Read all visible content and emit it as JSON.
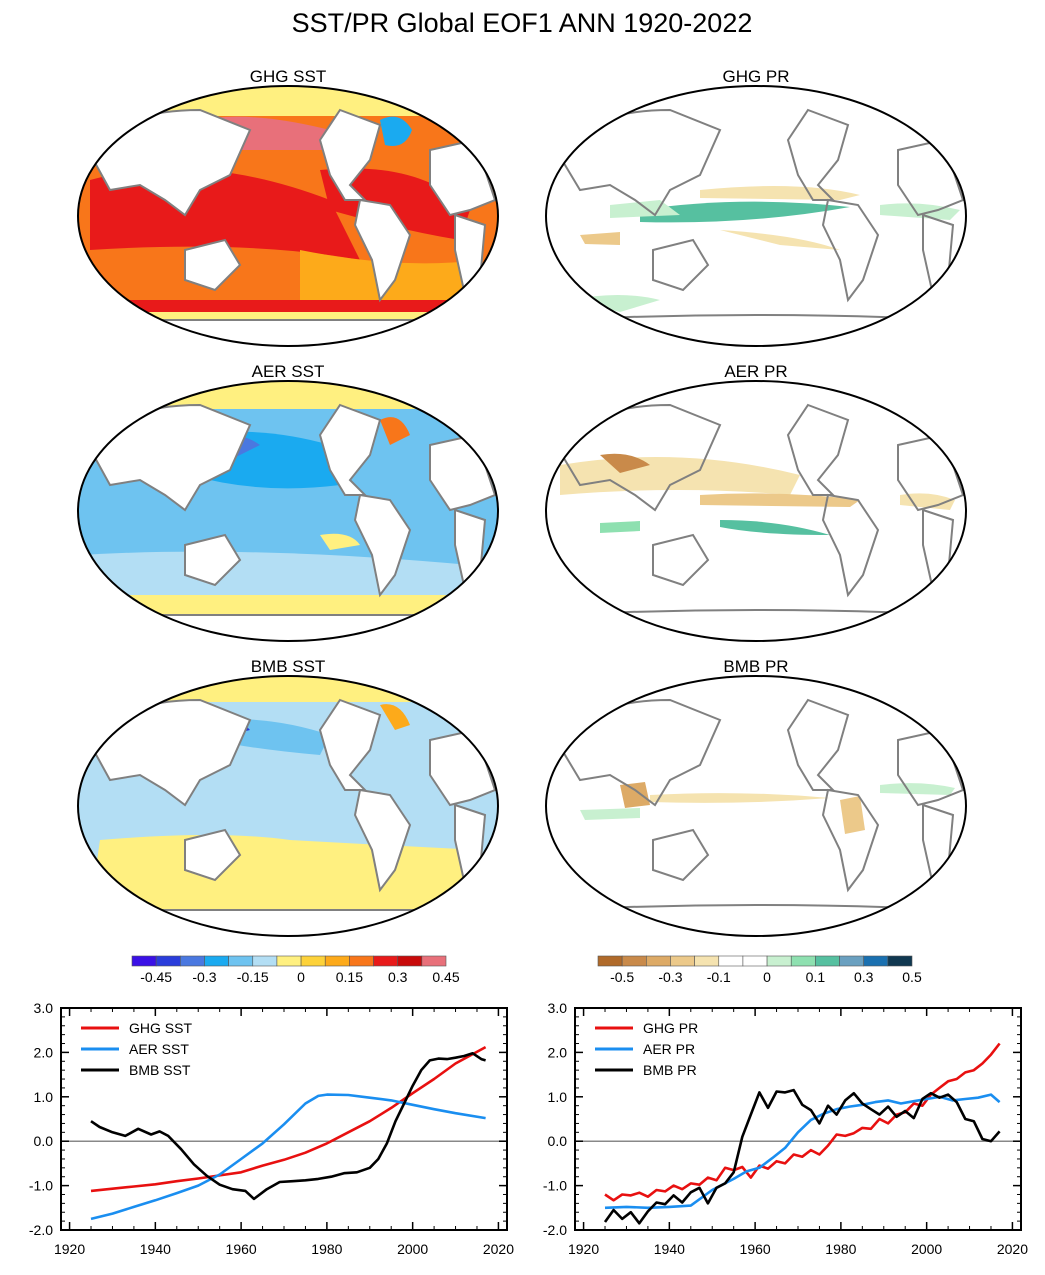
{
  "figure": {
    "title": "SST/PR Global EOF1 ANN 1920-2022"
  },
  "maps": [
    {
      "title": "GHG SST",
      "variable": "SST",
      "forcing": "GHG"
    },
    {
      "title": "GHG PR",
      "variable": "PR",
      "forcing": "GHG"
    },
    {
      "title": "AER SST",
      "variable": "SST",
      "forcing": "AER"
    },
    {
      "title": "AER PR",
      "variable": "PR",
      "forcing": "AER"
    },
    {
      "title": "BMB SST",
      "variable": "SST",
      "forcing": "BMB"
    },
    {
      "title": "BMB PR",
      "variable": "PR",
      "forcing": "BMB"
    }
  ],
  "colorbars": {
    "sst": {
      "colors": [
        "#3a10e6",
        "#2a3ddb",
        "#4a78e0",
        "#1aaaf0",
        "#6ec3f0",
        "#b3def4",
        "#fff080",
        "#fdd23a",
        "#fdaa1a",
        "#f8761a",
        "#e81a1a",
        "#c80a0a",
        "#e8707a"
      ],
      "labels": [
        "-0.45",
        "-0.3",
        "-0.15",
        "0",
        "0.15",
        "0.3",
        "0.45"
      ]
    },
    "pr": {
      "colors": [
        "#b06a2a",
        "#c98a4a",
        "#ddaa66",
        "#ecc98a",
        "#f5e3b0",
        "#ffffff",
        "#ffffff",
        "#c8f0d0",
        "#8ee0b0",
        "#56c0a0",
        "#6aa0c0",
        "#1a70b0",
        "#103850"
      ],
      "labels": [
        "-0.5",
        "-0.3",
        "-0.1",
        "0",
        "0.1",
        "0.3",
        "0.5"
      ]
    }
  },
  "chart_data": [
    {
      "type": "line",
      "xlim": [
        1918,
        2022
      ],
      "ylim": [
        -2.0,
        3.0
      ],
      "xticks": [
        "1920",
        "1940",
        "1960",
        "1980",
        "2000",
        "2020"
      ],
      "yticks": [
        "-2.0",
        "-1.0",
        "0.0",
        "1.0",
        "2.0",
        "3.0"
      ],
      "legend_position": "top-left",
      "series": [
        {
          "name": "GHG SST",
          "color": "#e81010",
          "x": [
            1925,
            1930,
            1935,
            1940,
            1945,
            1950,
            1955,
            1960,
            1965,
            1970,
            1975,
            1980,
            1985,
            1990,
            1995,
            2000,
            2005,
            2010,
            2017
          ],
          "y": [
            -1.12,
            -1.07,
            -1.02,
            -0.97,
            -0.9,
            -0.84,
            -0.77,
            -0.7,
            -0.55,
            -0.42,
            -0.26,
            -0.05,
            0.2,
            0.45,
            0.75,
            1.08,
            1.4,
            1.75,
            2.12
          ]
        },
        {
          "name": "AER SST",
          "color": "#1a8ef0",
          "x": [
            1925,
            1930,
            1935,
            1940,
            1945,
            1950,
            1955,
            1960,
            1965,
            1970,
            1975,
            1978,
            1980,
            1985,
            1990,
            1995,
            2000,
            2005,
            2010,
            2017
          ],
          "y": [
            -1.75,
            -1.63,
            -1.48,
            -1.33,
            -1.17,
            -1.0,
            -0.75,
            -0.4,
            -0.05,
            0.38,
            0.85,
            1.02,
            1.05,
            1.04,
            0.98,
            0.92,
            0.82,
            0.72,
            0.63,
            0.52
          ]
        },
        {
          "name": "BMB SST",
          "color": "#000000",
          "x": [
            1925,
            1927,
            1930,
            1933,
            1936,
            1939,
            1941,
            1943,
            1946,
            1949,
            1952,
            1955,
            1958,
            1961,
            1963,
            1966,
            1969,
            1972,
            1975,
            1978,
            1981,
            1984,
            1987,
            1990,
            1992,
            1994,
            1996,
            1998,
            2000,
            2002,
            2004,
            2006,
            2008,
            2010,
            2012,
            2014,
            2016,
            2017
          ],
          "y": [
            0.45,
            0.32,
            0.2,
            0.12,
            0.28,
            0.15,
            0.22,
            0.12,
            -0.18,
            -0.52,
            -0.78,
            -0.98,
            -1.08,
            -1.12,
            -1.3,
            -1.08,
            -0.92,
            -0.9,
            -0.88,
            -0.85,
            -0.8,
            -0.72,
            -0.7,
            -0.6,
            -0.4,
            -0.05,
            0.45,
            0.85,
            1.25,
            1.6,
            1.82,
            1.86,
            1.85,
            1.88,
            1.92,
            1.98,
            1.85,
            1.82
          ]
        }
      ]
    },
    {
      "type": "line",
      "xlim": [
        1918,
        2022
      ],
      "ylim": [
        -2.0,
        3.0
      ],
      "xticks": [
        "1920",
        "1940",
        "1960",
        "1980",
        "2000",
        "2020"
      ],
      "yticks": [
        "-2.0",
        "-1.0",
        "0.0",
        "1.0",
        "2.0",
        "3.0"
      ],
      "legend_position": "top-left",
      "series": [
        {
          "name": "GHG PR",
          "color": "#e81010",
          "x": [
            1925,
            1927,
            1929,
            1931,
            1933,
            1935,
            1937,
            1939,
            1941,
            1943,
            1945,
            1947,
            1949,
            1951,
            1953,
            1955,
            1957,
            1959,
            1961,
            1963,
            1965,
            1967,
            1969,
            1971,
            1973,
            1975,
            1977,
            1979,
            1981,
            1983,
            1985,
            1987,
            1989,
            1991,
            1993,
            1995,
            1997,
            1999,
            2001,
            2003,
            2005,
            2007,
            2009,
            2011,
            2013,
            2015,
            2017
          ],
          "y": [
            -1.2,
            -1.33,
            -1.2,
            -1.22,
            -1.16,
            -1.25,
            -1.1,
            -1.13,
            -1.0,
            -1.08,
            -0.95,
            -0.98,
            -0.82,
            -0.88,
            -0.6,
            -0.65,
            -0.58,
            -0.82,
            -0.55,
            -0.62,
            -0.45,
            -0.5,
            -0.3,
            -0.35,
            -0.2,
            -0.3,
            -0.1,
            0.15,
            0.12,
            0.18,
            0.3,
            0.28,
            0.5,
            0.4,
            0.6,
            0.65,
            0.85,
            0.8,
            1.05,
            1.2,
            1.35,
            1.4,
            1.55,
            1.6,
            1.75,
            1.95,
            2.2
          ]
        },
        {
          "name": "AER PR",
          "color": "#1a8ef0",
          "x": [
            1925,
            1930,
            1935,
            1940,
            1945,
            1950,
            1955,
            1958,
            1961,
            1964,
            1967,
            1970,
            1973,
            1976,
            1979,
            1982,
            1985,
            1988,
            1991,
            1994,
            1997,
            2000,
            2003,
            2006,
            2009,
            2012,
            2015,
            2017
          ],
          "y": [
            -1.5,
            -1.48,
            -1.5,
            -1.48,
            -1.45,
            -1.1,
            -0.85,
            -0.68,
            -0.6,
            -0.38,
            -0.15,
            0.2,
            0.48,
            0.62,
            0.72,
            0.78,
            0.82,
            0.88,
            0.92,
            0.85,
            0.9,
            0.95,
            1.0,
            0.92,
            0.95,
            0.98,
            1.05,
            0.88
          ]
        },
        {
          "name": "BMB PR",
          "color": "#000000",
          "x": [
            1925,
            1927,
            1929,
            1931,
            1933,
            1935,
            1937,
            1939,
            1941,
            1943,
            1945,
            1947,
            1949,
            1951,
            1953,
            1955,
            1957,
            1959,
            1961,
            1963,
            1965,
            1967,
            1969,
            1971,
            1973,
            1975,
            1977,
            1979,
            1981,
            1983,
            1985,
            1987,
            1989,
            1991,
            1993,
            1995,
            1997,
            1999,
            2001,
            2003,
            2005,
            2007,
            2009,
            2011,
            2013,
            2015,
            2017
          ],
          "y": [
            -1.82,
            -1.55,
            -1.75,
            -1.6,
            -1.85,
            -1.58,
            -1.38,
            -1.42,
            -1.22,
            -1.38,
            -1.15,
            -1.05,
            -1.4,
            -1.05,
            -0.95,
            -0.7,
            0.1,
            0.6,
            1.1,
            0.75,
            1.12,
            1.1,
            1.15,
            0.82,
            0.7,
            0.4,
            0.8,
            0.6,
            0.92,
            1.08,
            0.85,
            0.72,
            0.6,
            0.78,
            0.55,
            0.68,
            0.52,
            0.95,
            1.08,
            0.98,
            1.05,
            0.88,
            0.5,
            0.45,
            0.05,
            0.0,
            0.22
          ]
        }
      ]
    }
  ]
}
